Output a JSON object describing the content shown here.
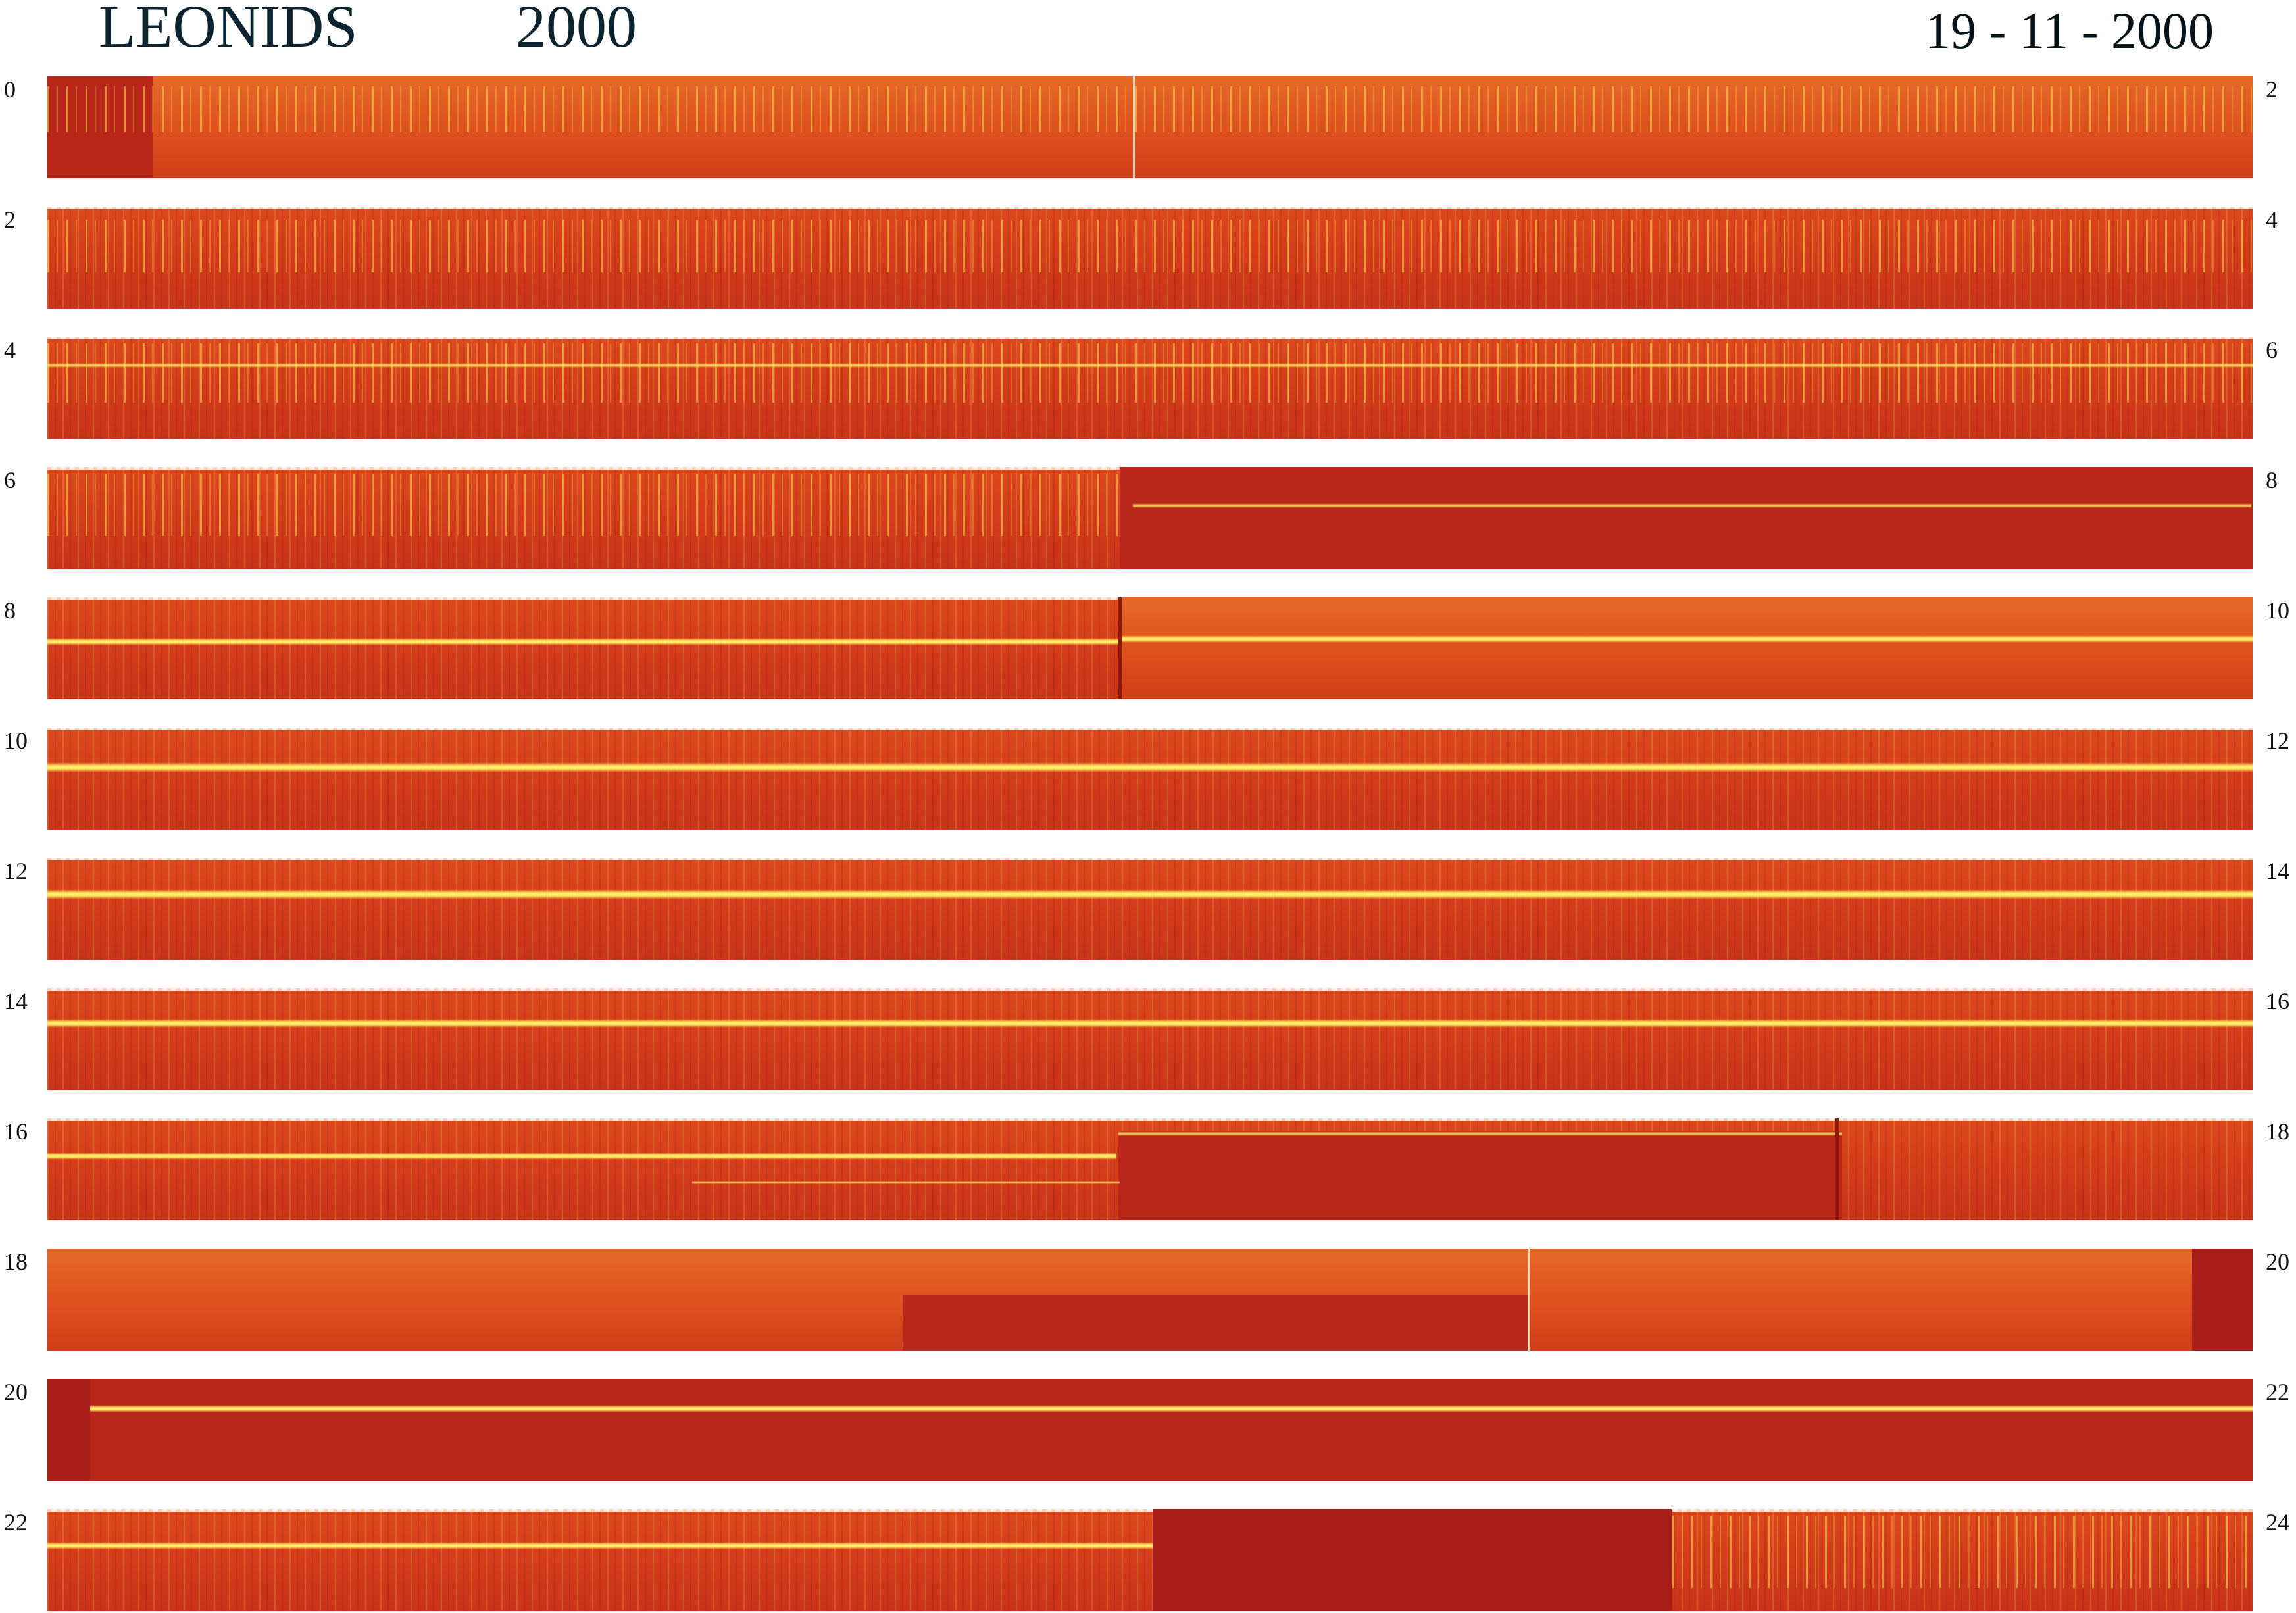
{
  "header": {
    "title": "LEONIDS",
    "year": "2000",
    "date": "19 - 11 - 2000"
  },
  "colors": {
    "background": "#ffffff",
    "strip_base": "#d43d1a",
    "strip_dark": "#a71e18",
    "carrier_line": "#fff27a"
  },
  "strips": [
    {
      "start": "0",
      "end": "2"
    },
    {
      "start": "2",
      "end": "4"
    },
    {
      "start": "4",
      "end": "6"
    },
    {
      "start": "6",
      "end": "8"
    },
    {
      "start": "8",
      "end": "10"
    },
    {
      "start": "10",
      "end": "12"
    },
    {
      "start": "12",
      "end": "14"
    },
    {
      "start": "14",
      "end": "16"
    },
    {
      "start": "16",
      "end": "18"
    },
    {
      "start": "18",
      "end": "20"
    },
    {
      "start": "20",
      "end": "22"
    },
    {
      "start": "22",
      "end": "24"
    }
  ]
}
